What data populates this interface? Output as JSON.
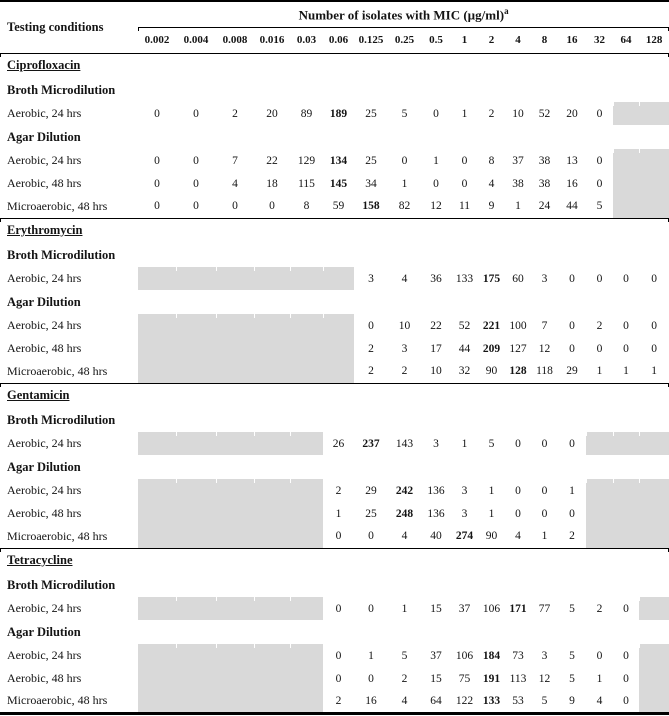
{
  "table": {
    "corner_label": "Testing conditions",
    "header": {
      "label": "Number of isolates with MIC (µg/ml)",
      "superscript": "a"
    },
    "mic_columns": [
      "0.002",
      "0.004",
      "0.008",
      "0.016",
      "0.03",
      "0.06",
      "0.125",
      "0.25",
      "0.5",
      "1",
      "2",
      "4",
      "8",
      "16",
      "32",
      "64",
      "128"
    ],
    "shaded_color": "#d9d9d9",
    "sections": [
      {
        "drug": "Ciprofloxacin",
        "groups": [
          {
            "method": "Broth Microdilution",
            "rows": [
              {
                "label": "Aerobic, 24 hrs",
                "shaded_before": 0,
                "shaded_after": 2,
                "values": [
                  "0",
                  "0",
                  "2",
                  "20",
                  "89",
                  "189",
                  "25",
                  "5",
                  "0",
                  "1",
                  "2",
                  "10",
                  "52",
                  "20",
                  "0"
                ],
                "bold_index": 5
              }
            ]
          },
          {
            "method": "Agar Dilution",
            "rows": [
              {
                "label": "Aerobic, 24 hrs",
                "shaded_before": 0,
                "shaded_after": 2,
                "values": [
                  "0",
                  "0",
                  "7",
                  "22",
                  "129",
                  "134",
                  "25",
                  "0",
                  "1",
                  "0",
                  "8",
                  "37",
                  "38",
                  "13",
                  "0"
                ],
                "bold_index": 5
              },
              {
                "label": "Aerobic, 48 hrs",
                "shaded_before": 0,
                "shaded_after": 2,
                "values": [
                  "0",
                  "0",
                  "4",
                  "18",
                  "115",
                  "145",
                  "34",
                  "1",
                  "0",
                  "0",
                  "4",
                  "38",
                  "38",
                  "16",
                  "0"
                ],
                "bold_index": 5
              },
              {
                "label": "Microaerobic, 48 hrs",
                "shaded_before": 0,
                "shaded_after": 2,
                "values": [
                  "0",
                  "0",
                  "0",
                  "0",
                  "8",
                  "59",
                  "158",
                  "82",
                  "12",
                  "11",
                  "9",
                  "1",
                  "24",
                  "44",
                  "5"
                ],
                "bold_index": 6
              }
            ]
          }
        ]
      },
      {
        "drug": "Erythromycin",
        "groups": [
          {
            "method": "Broth Microdilution",
            "rows": [
              {
                "label": "Aerobic, 24 hrs",
                "shaded_before": 6,
                "shaded_after": 0,
                "values": [
                  "3",
                  "4",
                  "36",
                  "133",
                  "175",
                  "60",
                  "3",
                  "0",
                  "0",
                  "0",
                  "0"
                ],
                "bold_index": 4
              }
            ]
          },
          {
            "method": "Agar Dilution",
            "rows": [
              {
                "label": "Aerobic, 24 hrs",
                "shaded_before": 6,
                "shaded_after": 0,
                "values": [
                  "0",
                  "10",
                  "22",
                  "52",
                  "221",
                  "100",
                  "7",
                  "0",
                  "2",
                  "0",
                  "0"
                ],
                "bold_index": 4
              },
              {
                "label": "Aerobic, 48 hrs",
                "shaded_before": 6,
                "shaded_after": 0,
                "values": [
                  "2",
                  "3",
                  "17",
                  "44",
                  "209",
                  "127",
                  "12",
                  "0",
                  "0",
                  "0",
                  "0"
                ],
                "bold_index": 4
              },
              {
                "label": "Microaerobic, 48 hrs",
                "shaded_before": 6,
                "shaded_after": 0,
                "values": [
                  "2",
                  "2",
                  "10",
                  "32",
                  "90",
                  "128",
                  "118",
                  "29",
                  "1",
                  "1",
                  "1"
                ],
                "bold_index": 5
              }
            ]
          }
        ]
      },
      {
        "drug": "Gentamicin",
        "groups": [
          {
            "method": "Broth Microdilution",
            "rows": [
              {
                "label": "Aerobic, 24 hrs",
                "shaded_before": 5,
                "shaded_after": 3,
                "values": [
                  "26",
                  "237",
                  "143",
                  "3",
                  "1",
                  "5",
                  "0",
                  "0",
                  "0"
                ],
                "bold_index": 1
              }
            ]
          },
          {
            "method": "Agar Dilution",
            "rows": [
              {
                "label": "Aerobic, 24 hrs",
                "shaded_before": 5,
                "shaded_after": 3,
                "values": [
                  "2",
                  "29",
                  "242",
                  "136",
                  "3",
                  "1",
                  "0",
                  "0",
                  "1"
                ],
                "bold_index": 2
              },
              {
                "label": "Aerobic, 48 hrs",
                "shaded_before": 5,
                "shaded_after": 3,
                "values": [
                  "1",
                  "25",
                  "248",
                  "136",
                  "3",
                  "1",
                  "0",
                  "0",
                  "0"
                ],
                "bold_index": 2
              },
              {
                "label": "Microaerobic, 48 hrs",
                "shaded_before": 5,
                "shaded_after": 3,
                "values": [
                  "0",
                  "0",
                  "4",
                  "40",
                  "274",
                  "90",
                  "4",
                  "1",
                  "2"
                ],
                "bold_index": 4
              }
            ]
          }
        ]
      },
      {
        "drug": "Tetracycline",
        "groups": [
          {
            "method": "Broth Microdilution",
            "rows": [
              {
                "label": "Aerobic, 24 hrs",
                "shaded_before": 5,
                "shaded_after": 1,
                "values": [
                  "0",
                  "0",
                  "1",
                  "15",
                  "37",
                  "106",
                  "171",
                  "77",
                  "5",
                  "2",
                  "0"
                ],
                "bold_index": 6
              }
            ]
          },
          {
            "method": "Agar Dilution",
            "rows": [
              {
                "label": "Aerobic, 24 hrs",
                "shaded_before": 5,
                "shaded_after": 1,
                "values": [
                  "0",
                  "1",
                  "5",
                  "37",
                  "106",
                  "184",
                  "73",
                  "3",
                  "5",
                  "0",
                  "0"
                ],
                "bold_index": 5
              },
              {
                "label": "Aerobic, 48 hrs",
                "shaded_before": 5,
                "shaded_after": 1,
                "values": [
                  "0",
                  "0",
                  "2",
                  "15",
                  "75",
                  "191",
                  "113",
                  "12",
                  "5",
                  "1",
                  "0"
                ],
                "bold_index": 5
              },
              {
                "label": "Microaerobic, 48 hrs",
                "shaded_before": 5,
                "shaded_after": 1,
                "values": [
                  "2",
                  "16",
                  "4",
                  "64",
                  "122",
                  "133",
                  "53",
                  "5",
                  "9",
                  "4",
                  "0"
                ],
                "bold_index": 5
              }
            ]
          }
        ]
      }
    ]
  }
}
